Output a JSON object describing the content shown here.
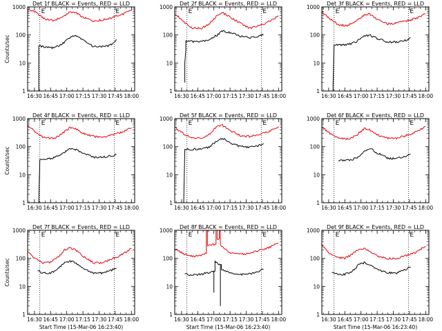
{
  "figure": {
    "background": "#ffffff"
  },
  "chart_data": [
    {
      "type": "line",
      "title": "Det 1f BLACK = Events, RED = LLD",
      "xlabel": "",
      "ylabel": "Counts/sec",
      "x_ticks": [
        "16:30",
        "16:45",
        "17:00",
        "17:15",
        "17:30",
        "17:45",
        "18:00"
      ],
      "x_range": [
        "16:23:40",
        "18:03:00"
      ],
      "ylim": [
        1,
        1000
      ],
      "yscale": "log",
      "y_ticks": [
        "1",
        "10",
        "100",
        "1000"
      ],
      "marker_labels": [
        "E",
        "E"
      ],
      "markers_x": [
        "16:35",
        "17:44"
      ],
      "series": [
        {
          "color": "#e8000b",
          "x": [
            "16:24",
            "16:30",
            "16:40",
            "16:48",
            "16:55",
            "17:03",
            "17:08",
            "17:15",
            "17:25",
            "17:33",
            "17:40",
            "17:50",
            "18:00"
          ],
          "y": [
            800,
            680,
            360,
            330,
            420,
            660,
            640,
            420,
            320,
            340,
            400,
            520,
            750
          ]
        },
        {
          "color": "#000000",
          "x": [
            "16:34",
            "16:34",
            "16:34",
            "16:40",
            "16:48",
            "16:55",
            "17:03",
            "17:08",
            "17:15",
            "17:25",
            "17:33",
            "17:40",
            "17:44",
            "17:46"
          ],
          "y": [
            1,
            1,
            40,
            37,
            35,
            45,
            80,
            100,
            70,
            38,
            38,
            42,
            55,
            70
          ]
        }
      ]
    },
    {
      "type": "line",
      "title": "Det 2f BLACK = Events, RED = LLD",
      "xlabel": "",
      "ylabel": "",
      "x_ticks": [
        "16:30",
        "16:45",
        "17:00",
        "17:15",
        "17:30",
        "17:45",
        "18:00"
      ],
      "x_range": [
        "16:23:40",
        "18:03:00"
      ],
      "ylim": [
        1,
        1000
      ],
      "yscale": "log",
      "y_ticks": [
        "1",
        "10",
        "100",
        "1000"
      ],
      "marker_labels": [
        "E",
        "E"
      ],
      "markers_x": [
        "16:35",
        "17:44"
      ],
      "series": [
        {
          "color": "#e8000b",
          "x": [
            "16:24",
            "16:32",
            "16:40",
            "16:48",
            "16:55",
            "17:03",
            "17:08",
            "17:15",
            "17:25",
            "17:33",
            "17:40",
            "17:50",
            "18:00"
          ],
          "y": [
            560,
            300,
            180,
            170,
            230,
            480,
            620,
            440,
            260,
            170,
            200,
            280,
            480
          ]
        },
        {
          "color": "#000000",
          "x": [
            "16:33",
            "16:33",
            "16:34",
            "16:34",
            "16:40",
            "16:48",
            "16:55",
            "17:03",
            "17:08",
            "17:15",
            "17:25",
            "17:33",
            "17:40",
            "17:46"
          ],
          "y": [
            2,
            10,
            30,
            60,
            58,
            57,
            65,
            100,
            140,
            120,
            90,
            80,
            85,
            100
          ]
        }
      ]
    },
    {
      "type": "line",
      "title": "Det 3f BLACK = Events, RED = LLD",
      "xlabel": "",
      "ylabel": "",
      "x_ticks": [
        "16:30",
        "16:45",
        "17:00",
        "17:15",
        "17:30",
        "17:45",
        "18:00"
      ],
      "x_range": [
        "16:23:40",
        "18:03:00"
      ],
      "ylim": [
        1,
        1000
      ],
      "yscale": "log",
      "y_ticks": [
        "1",
        "10",
        "100",
        "1000"
      ],
      "marker_labels": [
        "E",
        "E"
      ],
      "markers_x": [
        "16:35",
        "17:44"
      ],
      "series": [
        {
          "color": "#e8000b",
          "x": [
            "16:24",
            "16:32",
            "16:40",
            "16:48",
            "16:55",
            "17:03",
            "17:08",
            "17:15",
            "17:25",
            "17:33",
            "17:40",
            "17:50",
            "18:00"
          ],
          "y": [
            650,
            360,
            220,
            220,
            300,
            520,
            560,
            350,
            250,
            260,
            300,
            380,
            560
          ]
        },
        {
          "color": "#000000",
          "x": [
            "16:34",
            "16:34",
            "16:35",
            "16:40",
            "16:48",
            "16:55",
            "17:03",
            "17:08",
            "17:15",
            "17:25",
            "17:33",
            "17:40",
            "17:44",
            "17:46"
          ],
          "y": [
            1,
            1,
            44,
            44,
            46,
            55,
            90,
            100,
            75,
            55,
            55,
            62,
            70,
            80
          ]
        }
      ]
    },
    {
      "type": "line",
      "title": "Det 4f BLACK = Events, RED = LLD",
      "xlabel": "",
      "ylabel": "Counts/sec",
      "x_ticks": [
        "16:30",
        "16:45",
        "17:00",
        "17:15",
        "17:30",
        "17:45",
        "18:00"
      ],
      "x_range": [
        "16:23:40",
        "18:03:00"
      ],
      "ylim": [
        1,
        1000
      ],
      "yscale": "log",
      "y_ticks": [
        "1",
        "10",
        "100",
        "1000"
      ],
      "marker_labels": [
        "E",
        "E"
      ],
      "markers_x": [
        "16:35",
        "17:44"
      ],
      "series": [
        {
          "color": "#e8000b",
          "x": [
            "16:24",
            "16:32",
            "16:40",
            "16:48",
            "16:55",
            "17:03",
            "17:08",
            "17:15",
            "17:25",
            "17:33",
            "17:40",
            "17:50",
            "18:00"
          ],
          "y": [
            560,
            300,
            200,
            200,
            280,
            480,
            440,
            300,
            230,
            220,
            250,
            320,
            470
          ]
        },
        {
          "color": "#000000",
          "x": [
            "16:34",
            "16:34",
            "16:35",
            "16:40",
            "16:48",
            "16:55",
            "17:03",
            "17:08",
            "17:15",
            "17:25",
            "17:33",
            "17:40",
            "17:46"
          ],
          "y": [
            1,
            1,
            36,
            36,
            40,
            55,
            85,
            80,
            60,
            42,
            42,
            46,
            52
          ]
        }
      ]
    },
    {
      "type": "line",
      "title": "Det 5f BLACK = Events, RED = LLD",
      "xlabel": "",
      "ylabel": "",
      "x_ticks": [
        "16:30",
        "16:45",
        "17:00",
        "17:15",
        "17:30",
        "17:45",
        "18:00"
      ],
      "x_range": [
        "16:23:40",
        "18:03:00"
      ],
      "ylim": [
        1,
        1000
      ],
      "yscale": "log",
      "y_ticks": [
        "1",
        "10",
        "100",
        "1000"
      ],
      "marker_labels": [
        "E",
        "E"
      ],
      "markers_x": [
        "16:35",
        "17:44"
      ],
      "series": [
        {
          "color": "#e8000b",
          "x": [
            "16:24",
            "16:32",
            "16:40",
            "16:48",
            "16:55",
            "17:03",
            "17:08",
            "17:15",
            "17:25",
            "17:33",
            "17:40",
            "17:50",
            "18:00"
          ],
          "y": [
            480,
            280,
            200,
            200,
            260,
            560,
            580,
            380,
            250,
            230,
            270,
            340,
            520
          ]
        },
        {
          "color": "#000000",
          "x": [
            "16:32",
            "16:32",
            "16:33",
            "16:40",
            "16:48",
            "16:55",
            "17:03",
            "17:08",
            "17:15",
            "17:25",
            "17:33",
            "17:40",
            "17:46"
          ],
          "y": [
            1,
            1,
            80,
            80,
            85,
            95,
            160,
            200,
            140,
            100,
            95,
            105,
            130
          ]
        }
      ]
    },
    {
      "type": "line",
      "title": "Det 6f BLACK = Events, RED = LLD",
      "xlabel": "",
      "ylabel": "",
      "x_ticks": [
        "16:30",
        "16:45",
        "17:00",
        "17:15",
        "17:30",
        "17:45",
        "18:00"
      ],
      "x_range": [
        "16:23:40",
        "18:03:00"
      ],
      "ylim": [
        1,
        1000
      ],
      "yscale": "log",
      "y_ticks": [
        "1",
        "10",
        "100",
        "1000"
      ],
      "marker_labels": [
        "E",
        "E"
      ],
      "markers_x": [
        "16:35",
        "17:44"
      ],
      "series": [
        {
          "color": "#e8000b",
          "x": [
            "16:24",
            "16:32",
            "16:40",
            "16:48",
            "16:55",
            "17:03",
            "17:08",
            "17:15",
            "17:25",
            "17:33",
            "17:40",
            "17:50",
            "18:00"
          ],
          "y": [
            500,
            280,
            200,
            190,
            240,
            440,
            400,
            260,
            200,
            200,
            240,
            320,
            520
          ]
        },
        {
          "color": "#000000",
          "x": [
            "16:39",
            "16:45",
            "16:52",
            "16:58",
            "17:05",
            "17:10",
            "17:15",
            "17:25",
            "17:33",
            "17:40",
            "17:46"
          ],
          "y": [
            33,
            32,
            35,
            45,
            75,
            80,
            60,
            38,
            38,
            44,
            55
          ]
        }
      ]
    },
    {
      "type": "line",
      "title": "Det 7f BLACK = Events, RED = LLD",
      "xlabel": "Start Time (15-Mar-06 16:23:40)",
      "ylabel": "Counts/sec",
      "x_ticks": [
        "16:30",
        "16:45",
        "17:00",
        "17:15",
        "17:30",
        "17:45",
        "18:00"
      ],
      "x_range": [
        "16:23:40",
        "18:03:00"
      ],
      "ylim": [
        1,
        1000
      ],
      "yscale": "log",
      "y_ticks": [
        "1",
        "10",
        "100",
        "1000"
      ],
      "marker_labels": [
        "E",
        "E"
      ],
      "markers_x": [
        "16:35",
        "17:44"
      ],
      "series": [
        {
          "color": "#e8000b",
          "x": [
            "16:24",
            "16:30",
            "16:38",
            "16:45",
            "16:52",
            "16:58",
            "17:03",
            "17:08",
            "17:15",
            "17:25",
            "17:33",
            "17:40",
            "17:50",
            "18:00"
          ],
          "y": [
            180,
            100,
            70,
            72,
            110,
            200,
            240,
            200,
            120,
            70,
            70,
            90,
            130,
            220
          ]
        },
        {
          "color": "#000000",
          "x": [
            "16:33",
            "16:38",
            "16:45",
            "16:52",
            "16:58",
            "17:03",
            "17:08",
            "17:15",
            "17:25",
            "17:33",
            "17:40",
            "17:46"
          ],
          "y": [
            35,
            30,
            30,
            42,
            70,
            80,
            70,
            45,
            30,
            30,
            36,
            45
          ]
        }
      ]
    },
    {
      "type": "line",
      "title": "Det 8f BLACK = Events, RED = LLD",
      "xlabel": "Start Time (15-Mar-06 16:23:40)",
      "ylabel": "",
      "x_ticks": [
        "16:30",
        "16:45",
        "17:00",
        "17:15",
        "17:30",
        "17:45",
        "18:00"
      ],
      "x_range": [
        "16:23:40",
        "18:03:00"
      ],
      "ylim": [
        1,
        1000
      ],
      "yscale": "log",
      "y_ticks": [
        "1",
        "10",
        "100",
        "1000"
      ],
      "marker_labels": [
        "E",
        "E"
      ],
      "markers_x": [
        "16:35",
        "17:44"
      ],
      "series": [
        {
          "color": "#e8000b",
          "x": [
            "16:24",
            "16:32",
            "16:40",
            "16:48",
            "16:53",
            "16:53",
            "16:54",
            "16:54",
            "17:00",
            "17:02",
            "17:02",
            "17:03",
            "17:03",
            "17:05",
            "17:05",
            "17:06",
            "17:06",
            "17:10",
            "17:15",
            "17:25",
            "17:33",
            "17:40",
            "17:50",
            "18:00"
          ],
          "y": [
            220,
            140,
            120,
            125,
            150,
            1000,
            1000,
            300,
            320,
            320,
            1000,
            1000,
            500,
            500,
            1000,
            1000,
            300,
            220,
            160,
            140,
            150,
            180,
            230,
            350
          ]
        },
        {
          "color": "#000000",
          "x": [
            "16:33",
            "16:40",
            "16:48",
            "16:53",
            "17:00",
            "17:00",
            "17:00",
            "17:01",
            "17:01",
            "17:02",
            "17:06",
            "17:06",
            "17:06",
            "17:07",
            "17:07",
            "17:08",
            "17:15",
            "17:25",
            "17:33",
            "17:40",
            "17:46"
          ],
          "y": [
            28,
            25,
            27,
            30,
            35,
            6,
            35,
            35,
            80,
            70,
            60,
            2,
            60,
            60,
            40,
            40,
            30,
            26,
            28,
            32,
            40
          ]
        }
      ]
    },
    {
      "type": "line",
      "title": "Det 9f BLACK = Events, RED = LLD",
      "xlabel": "Start Time (15-Mar-06 16:23:40)",
      "ylabel": "",
      "x_ticks": [
        "16:30",
        "16:45",
        "17:00",
        "17:15",
        "17:30",
        "17:45",
        "18:00"
      ],
      "x_range": [
        "16:23:40",
        "18:03:00"
      ],
      "ylim": [
        1,
        1000
      ],
      "yscale": "log",
      "y_ticks": [
        "1",
        "10",
        "100",
        "1000"
      ],
      "marker_labels": [
        "E",
        "E"
      ],
      "markers_x": [
        "16:35",
        "17:44"
      ],
      "series": [
        {
          "color": "#e8000b",
          "x": [
            "16:24",
            "16:30",
            "16:38",
            "16:45",
            "16:52",
            "16:58",
            "17:03",
            "17:08",
            "17:15",
            "17:25",
            "17:33",
            "17:40",
            "17:50",
            "18:00"
          ],
          "y": [
            280,
            160,
            110,
            100,
            140,
            220,
            230,
            180,
            120,
            100,
            100,
            120,
            160,
            270
          ]
        },
        {
          "color": "#000000",
          "x": [
            "16:33",
            "16:38",
            "16:45",
            "16:52",
            "16:58",
            "17:03",
            "17:08",
            "17:15",
            "17:25",
            "17:33",
            "17:40",
            "17:46"
          ],
          "y": [
            30,
            27,
            27,
            35,
            60,
            70,
            60,
            40,
            30,
            30,
            38,
            48
          ]
        }
      ]
    }
  ]
}
